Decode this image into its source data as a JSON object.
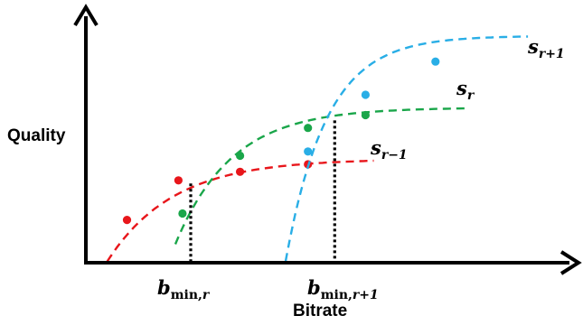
{
  "axes": {
    "x_label": "Bitrate",
    "y_label": "Quality"
  },
  "curves": [
    {
      "id": "s_r_minus_1",
      "base": "s",
      "subscript": "r−1",
      "color": "#e8161b",
      "points": [
        [
          2.0,
          2.0
        ],
        [
          4.5,
          3.85
        ],
        [
          7.5,
          4.25
        ],
        [
          10.8,
          4.6
        ]
      ]
    },
    {
      "id": "s_r",
      "base": "s",
      "subscript": "r",
      "color": "#1aa64a",
      "points": [
        [
          4.7,
          2.3
        ],
        [
          7.5,
          5.0
        ],
        [
          10.8,
          6.3
        ],
        [
          13.6,
          6.9
        ]
      ]
    },
    {
      "id": "s_r_plus_1",
      "base": "s",
      "subscript": "r+1",
      "color": "#29aee6",
      "points": [
        [
          10.8,
          5.2
        ],
        [
          13.6,
          7.85
        ],
        [
          17.0,
          9.4
        ]
      ]
    }
  ],
  "markers": [
    {
      "id": "b_min_r",
      "base": "b",
      "subscript_upright": "min,",
      "subscript_italic": "r",
      "x": 5.1,
      "y": 3.7
    },
    {
      "id": "b_min_r_plus_1",
      "base": "b",
      "subscript_upright": "min,",
      "subscript_italic": "r+1",
      "x": 12.1,
      "y": 6.65
    }
  ],
  "colors": {
    "axis": "#000000",
    "dotted": "#000000"
  }
}
